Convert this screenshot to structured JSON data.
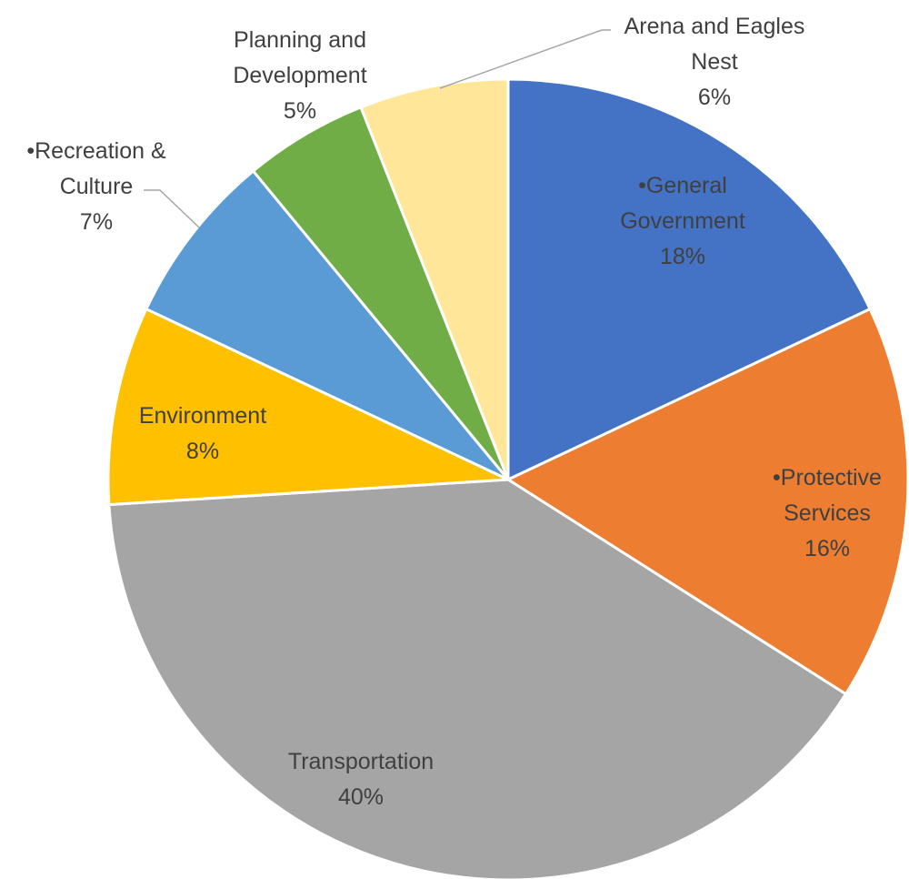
{
  "chart_data": {
    "type": "pie",
    "title": "",
    "slices": [
      {
        "label_lines": [
          "•General",
          "Government"
        ],
        "percent_label": "18%",
        "value": 18,
        "color": "#4472C4"
      },
      {
        "label_lines": [
          "•Protective",
          "Services"
        ],
        "percent_label": "16%",
        "value": 16,
        "color": "#ED7D31"
      },
      {
        "label_lines": [
          "Transportation"
        ],
        "percent_label": "40%",
        "value": 40,
        "color": "#A5A5A5"
      },
      {
        "label_lines": [
          "Environment"
        ],
        "percent_label": "8%",
        "value": 8,
        "color": "#FFC000"
      },
      {
        "label_lines": [
          "•Recreation &",
          "Culture"
        ],
        "percent_label": "7%",
        "value": 7,
        "color": "#5B9BD5"
      },
      {
        "label_lines": [
          "Planning and",
          "Development"
        ],
        "percent_label": "5%",
        "value": 5,
        "color": "#70AD47"
      },
      {
        "label_lines": [
          "Arena and Eagles",
          "Nest"
        ],
        "percent_label": "6%",
        "value": 6,
        "color": "#FFE699"
      }
    ],
    "start_angle_deg": 0,
    "direction": "clockwise",
    "legend": "none",
    "data_labels": "category-and-percent"
  }
}
